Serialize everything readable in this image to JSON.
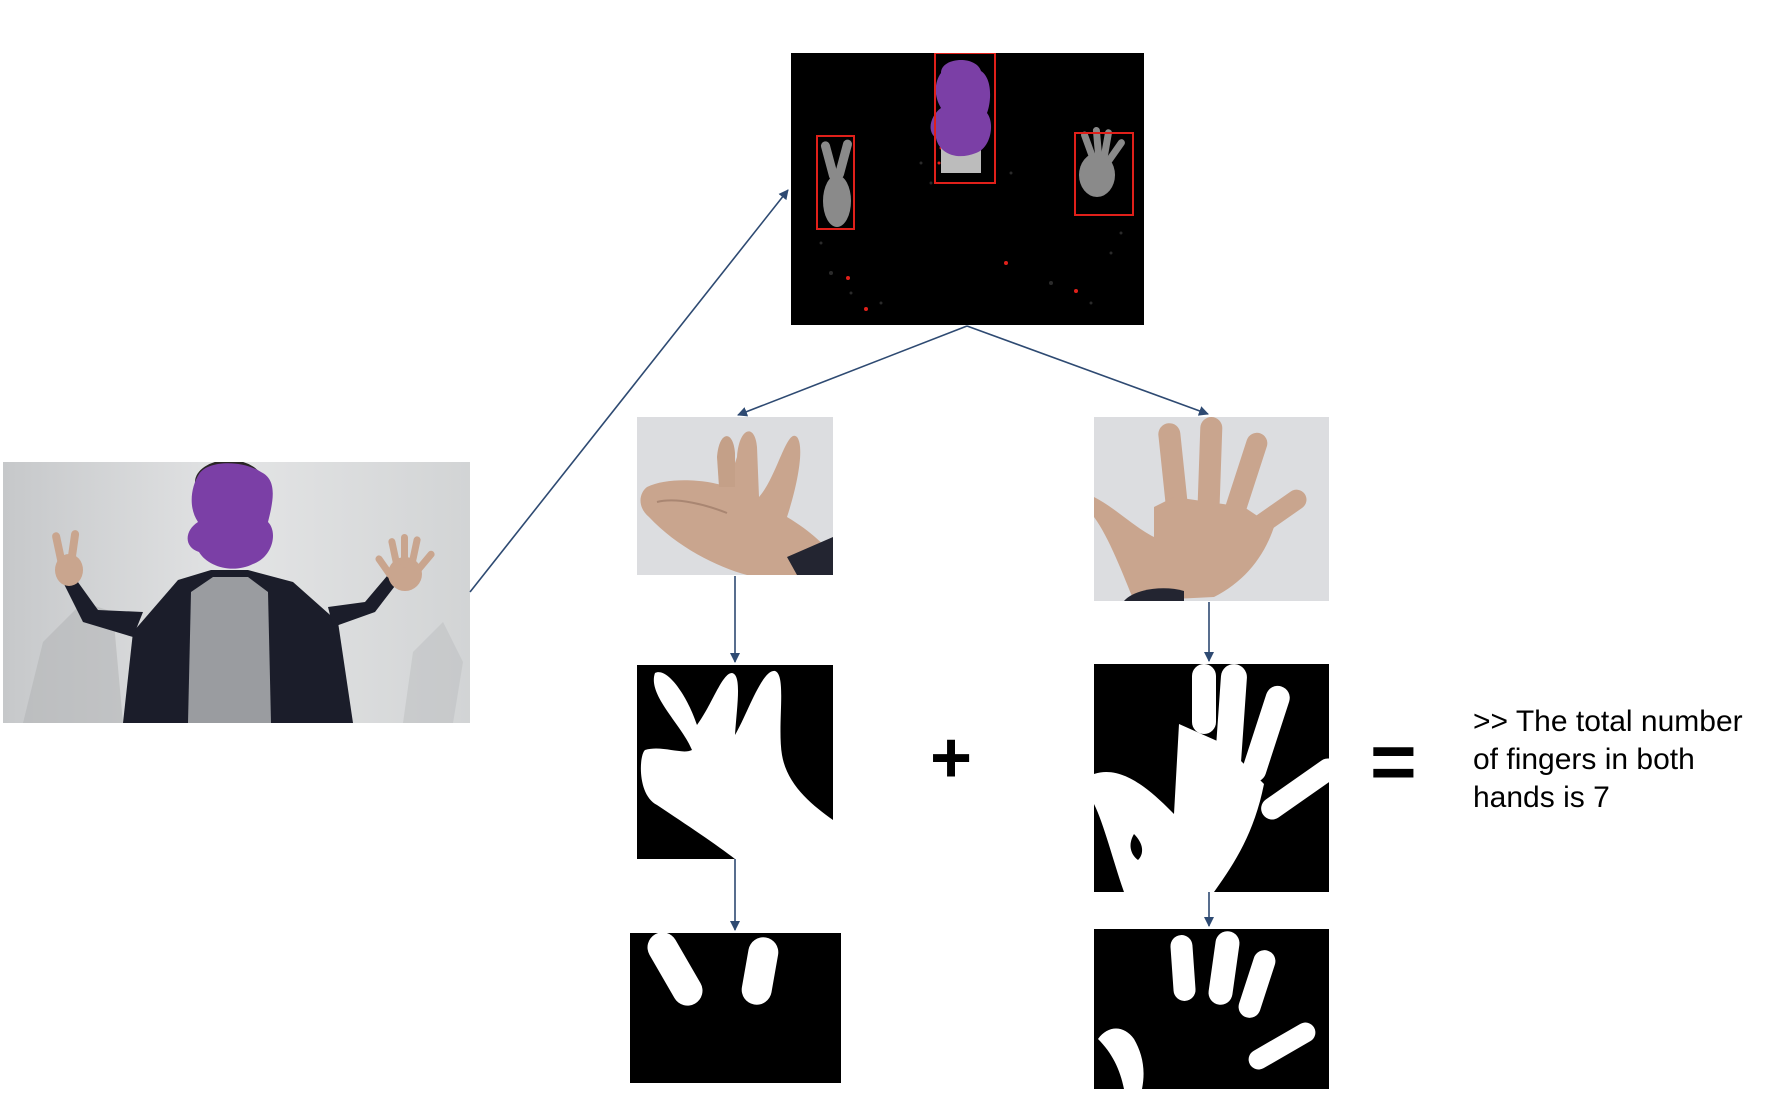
{
  "figure": {
    "plus_symbol": "+",
    "equals_symbol": "=",
    "result_text": ">> The total number of fingers in both hands is 7",
    "colors": {
      "arrow": "#2e4a72",
      "detection_box": "#e0201a",
      "face_mask": "#7b3fa6",
      "mask_background": "#000000",
      "mask_foreground": "#ffffff"
    }
  }
}
